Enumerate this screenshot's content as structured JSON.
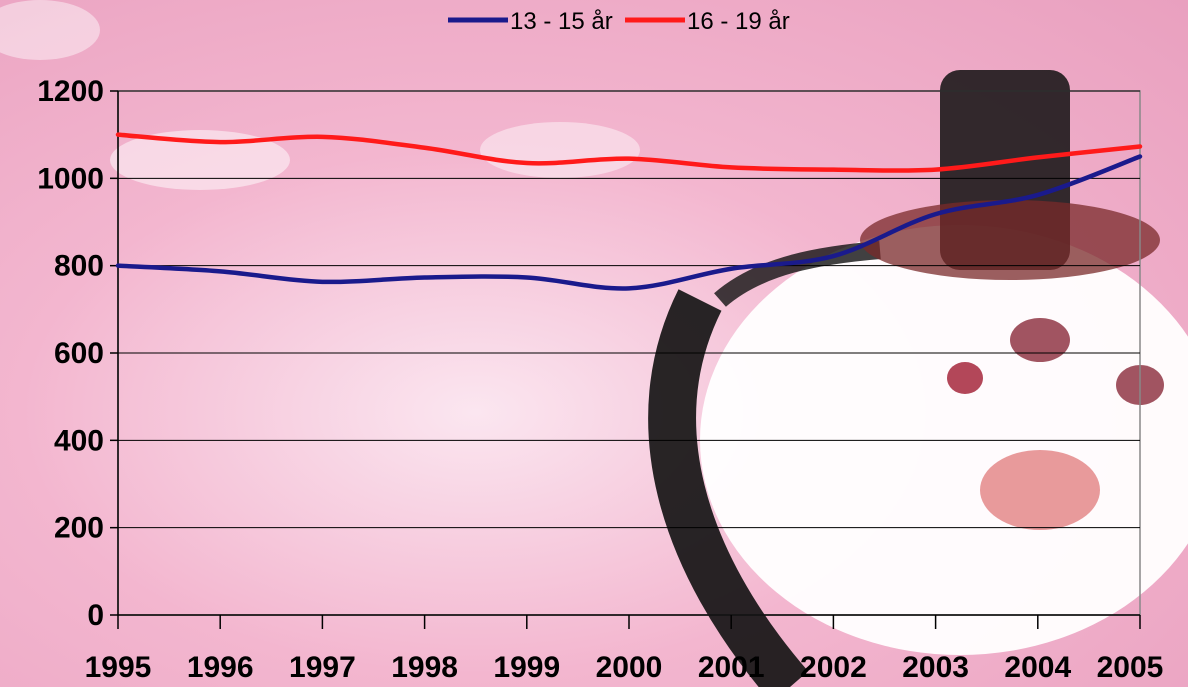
{
  "chart_data": {
    "type": "line",
    "title": "",
    "xlabel": "",
    "ylabel": "",
    "categories": [
      "1995",
      "1996",
      "1997",
      "1998",
      "1999",
      "2000",
      "2001",
      "2002",
      "2003",
      "2004",
      "2005"
    ],
    "ylim": [
      0,
      1200
    ],
    "yticks": [
      "0",
      "200",
      "400",
      "600",
      "800",
      "1000",
      "1200"
    ],
    "grid": true,
    "legend_position": "top",
    "series": [
      {
        "name": "13 - 15 år",
        "color": "#1a1a8c",
        "values": [
          800,
          787,
          763,
          773,
          773,
          748,
          793,
          822,
          918,
          962,
          1050
        ]
      },
      {
        "name": "16 - 19 år",
        "color": "#ff1a1a",
        "values": [
          1100,
          1083,
          1095,
          1070,
          1035,
          1045,
          1025,
          1020,
          1020,
          1048,
          1073
        ]
      }
    ]
  }
}
